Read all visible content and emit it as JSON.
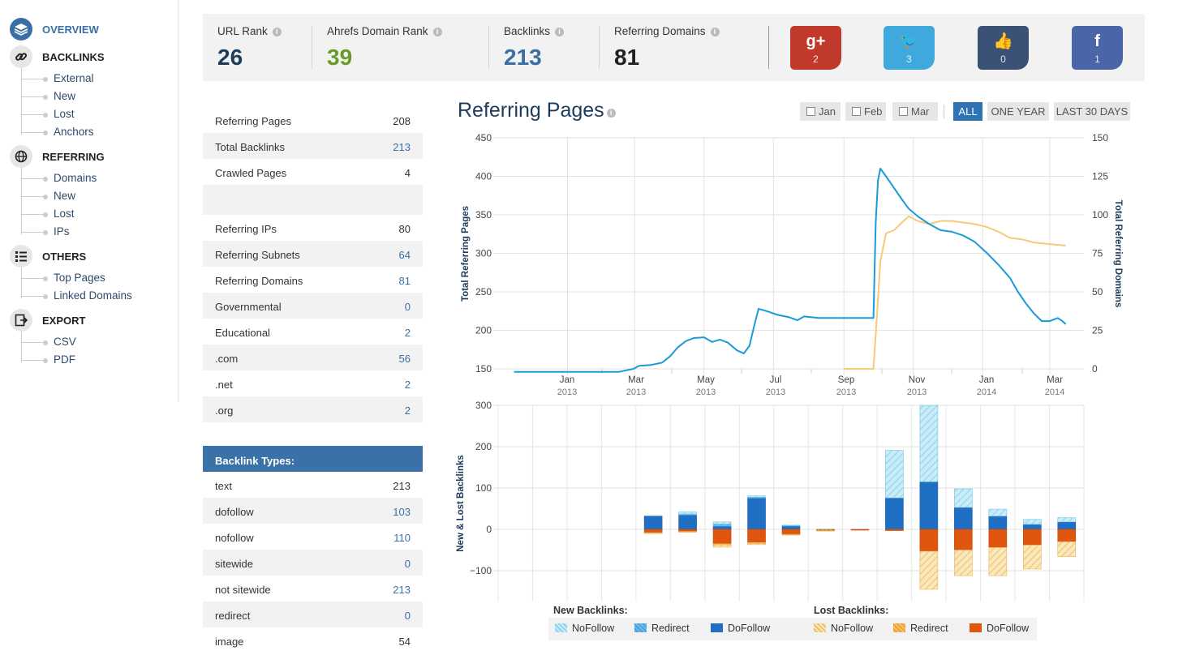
{
  "sidebar": {
    "sections": [
      {
        "title": "OVERVIEW",
        "icon": "layers-icon",
        "items": []
      },
      {
        "title": "BACKLINKS",
        "icon": "link-icon",
        "items": [
          "External",
          "New",
          "Lost",
          "Anchors"
        ]
      },
      {
        "title": "REFERRING",
        "icon": "globe-icon",
        "items": [
          "Domains",
          "New",
          "Lost",
          "IPs"
        ]
      },
      {
        "title": "OTHERS",
        "icon": "list-icon",
        "items": [
          "Top Pages",
          "Linked Domains"
        ]
      },
      {
        "title": "EXPORT",
        "icon": "export-icon",
        "items": [
          "CSV",
          "PDF"
        ]
      }
    ]
  },
  "stats": [
    {
      "label": "URL Rank",
      "value": "26",
      "color": "#1d3c5c"
    },
    {
      "label": "Ahrefs Domain Rank",
      "value": "39",
      "color": "#6a9a2a"
    },
    {
      "label": "Backlinks",
      "value": "213",
      "color": "#3a6fa5"
    },
    {
      "label": "Referring Domains",
      "value": "81",
      "color": "#222222"
    }
  ],
  "social": [
    {
      "name": "google-plus",
      "glyph": "g+",
      "count": "2",
      "color": "#c0392b"
    },
    {
      "name": "twitter",
      "glyph": "🐦",
      "count": "3",
      "color": "#3fa9dd"
    },
    {
      "name": "like",
      "glyph": "👍",
      "count": "0",
      "color": "#3b5175"
    },
    {
      "name": "facebook",
      "glyph": "f",
      "count": "1",
      "color": "#4a66a8"
    }
  ],
  "table1": [
    {
      "label": "Referring Pages",
      "value": "208",
      "link": false
    },
    {
      "label": "Total Backlinks",
      "value": "213",
      "link": true
    },
    {
      "label": "Crawled Pages",
      "value": "4",
      "link": false
    },
    {
      "label": "",
      "value": "",
      "link": false,
      "tall": true
    },
    {
      "label": "Referring IPs",
      "value": "80",
      "link": false
    },
    {
      "label": "Referring Subnets",
      "value": "64",
      "link": true
    },
    {
      "label": "Referring Domains",
      "value": "81",
      "link": true
    },
    {
      "label": "Governmental",
      "value": "0",
      "link": true
    },
    {
      "label": "Educational",
      "value": "2",
      "link": true
    },
    {
      "label": ".com",
      "value": "56",
      "link": true
    },
    {
      "label": ".net",
      "value": "2",
      "link": true
    },
    {
      "label": ".org",
      "value": "2",
      "link": true
    }
  ],
  "table2": {
    "header": "Backlink Types:",
    "rows": [
      {
        "label": "text",
        "value": "213",
        "link": false
      },
      {
        "label": "dofollow",
        "value": "103",
        "link": true
      },
      {
        "label": "nofollow",
        "value": "110",
        "link": true
      },
      {
        "label": "sitewide",
        "value": "0",
        "link": true
      },
      {
        "label": "not sitewide",
        "value": "213",
        "link": true
      },
      {
        "label": "redirect",
        "value": "0",
        "link": true
      },
      {
        "label": "image",
        "value": "54",
        "link": false
      }
    ]
  },
  "chart_header": {
    "title": "Referring Pages",
    "months": [
      "Jan",
      "Feb",
      "Mar"
    ],
    "ranges": [
      "ALL",
      "ONE YEAR",
      "LAST 30 DAYS"
    ],
    "active_range": "ALL"
  },
  "legend": {
    "new_title": "New Backlinks:",
    "lost_title": "Lost Backlinks:",
    "new_items": [
      {
        "label": "NoFollow",
        "color": "#8fd4ee"
      },
      {
        "label": "Redirect",
        "color": "#4aa3e0"
      },
      {
        "label": "DoFollow",
        "color": "#1f6fc5"
      }
    ],
    "lost_items": [
      {
        "label": "NoFollow",
        "color": "#f5d48c"
      },
      {
        "label": "Redirect",
        "color": "#f0a030"
      },
      {
        "label": "DoFollow",
        "color": "#e0560e"
      }
    ]
  },
  "chart_data": [
    {
      "type": "line",
      "xlabel": "",
      "ylabel": "Total Referring Pages",
      "y2label": "Total Referring Domains",
      "ylim": [
        150,
        450
      ],
      "y2lim": [
        0,
        150
      ],
      "yticks": [
        150,
        200,
        250,
        300,
        350,
        400,
        450
      ],
      "y2ticks": [
        0,
        25,
        50,
        75,
        100,
        125,
        150
      ],
      "x_ticks": [
        {
          "month": "Jan",
          "year": "2013"
        },
        {
          "month": "Mar",
          "year": "2013"
        },
        {
          "month": "May",
          "year": "2013"
        },
        {
          "month": "Jul",
          "year": "2013"
        },
        {
          "month": "Sep",
          "year": "2013"
        },
        {
          "month": "Nov",
          "year": "2013"
        },
        {
          "month": "Jan",
          "year": "2014"
        },
        {
          "month": "Mar",
          "year": "2014"
        }
      ],
      "grid": true,
      "series": [
        {
          "name": "Total Referring Pages",
          "axis": "left",
          "color": "#1a9bd7",
          "points": [
            [
              "2012-11-15",
              146
            ],
            [
              "2013-02-15",
              146
            ],
            [
              "2013-02-28",
              150
            ],
            [
              "2013-03-05",
              154
            ],
            [
              "2013-03-15",
              155
            ],
            [
              "2013-03-25",
              158
            ],
            [
              "2013-04-01",
              166
            ],
            [
              "2013-04-08",
              178
            ],
            [
              "2013-04-15",
              186
            ],
            [
              "2013-04-22",
              190
            ],
            [
              "2013-05-01",
              191
            ],
            [
              "2013-05-08",
              185
            ],
            [
              "2013-05-15",
              188
            ],
            [
              "2013-05-22",
              184
            ],
            [
              "2013-05-30",
              174
            ],
            [
              "2013-06-05",
              170
            ],
            [
              "2013-06-10",
              180
            ],
            [
              "2013-06-14",
              205
            ],
            [
              "2013-06-18",
              228
            ],
            [
              "2013-06-25",
              225
            ],
            [
              "2013-07-05",
              220
            ],
            [
              "2013-07-15",
              217
            ],
            [
              "2013-07-22",
              213
            ],
            [
              "2013-07-28",
              218
            ],
            [
              "2013-08-10",
              216
            ],
            [
              "2013-09-01",
              216
            ],
            [
              "2013-09-20",
              216
            ],
            [
              "2013-09-27",
              216
            ],
            [
              "2013-09-29",
              340
            ],
            [
              "2013-10-01",
              395
            ],
            [
              "2013-10-03",
              410
            ],
            [
              "2013-10-08",
              400
            ],
            [
              "2013-10-15",
              385
            ],
            [
              "2013-10-22",
              370
            ],
            [
              "2013-10-28",
              358
            ],
            [
              "2013-11-05",
              348
            ],
            [
              "2013-11-15",
              338
            ],
            [
              "2013-11-25",
              330
            ],
            [
              "2013-12-05",
              328
            ],
            [
              "2013-12-15",
              323
            ],
            [
              "2013-12-25",
              315
            ],
            [
              "2014-01-05",
              300
            ],
            [
              "2014-01-15",
              285
            ],
            [
              "2014-01-25",
              268
            ],
            [
              "2014-02-01",
              250
            ],
            [
              "2014-02-08",
              235
            ],
            [
              "2014-02-15",
              222
            ],
            [
              "2014-02-22",
              212
            ],
            [
              "2014-03-01",
              212
            ],
            [
              "2014-03-08",
              216
            ],
            [
              "2014-03-12",
              212
            ],
            [
              "2014-03-15",
              208
            ]
          ]
        },
        {
          "name": "Total Referring Domains",
          "axis": "right",
          "color": "#f7c97a",
          "points": [
            [
              "2013-09-01",
              0
            ],
            [
              "2013-09-27",
              0
            ],
            [
              "2013-10-01",
              45
            ],
            [
              "2013-10-03",
              70
            ],
            [
              "2013-10-08",
              88
            ],
            [
              "2013-10-15",
              90
            ],
            [
              "2013-10-22",
              95
            ],
            [
              "2013-10-28",
              99
            ],
            [
              "2013-11-05",
              96
            ],
            [
              "2013-11-15",
              94
            ],
            [
              "2013-11-25",
              96
            ],
            [
              "2013-12-05",
              96
            ],
            [
              "2013-12-15",
              95
            ],
            [
              "2013-12-25",
              94
            ],
            [
              "2014-01-05",
              92
            ],
            [
              "2014-01-15",
              89
            ],
            [
              "2014-01-25",
              85
            ],
            [
              "2014-02-05",
              84
            ],
            [
              "2014-02-15",
              82
            ],
            [
              "2014-03-01",
              81
            ],
            [
              "2014-03-15",
              80
            ]
          ]
        }
      ]
    },
    {
      "type": "bar",
      "stacked": true,
      "ylabel": "New & Lost Backlinks",
      "ylim": [
        -150,
        300
      ],
      "yticks": [
        -100,
        0,
        100,
        200,
        300
      ],
      "categories": [
        "2012-11",
        "2012-12",
        "2013-01",
        "2013-02",
        "2013-03",
        "2013-04",
        "2013-05",
        "2013-06",
        "2013-07",
        "2013-08",
        "2013-09",
        "2013-10",
        "2013-11",
        "2013-12",
        "2014-01",
        "2014-02",
        "2014-03"
      ],
      "series": [
        {
          "name": "New NoFollow",
          "color": "#8fd4ee",
          "values": [
            0,
            0,
            0,
            0,
            0,
            5,
            5,
            3,
            0,
            0,
            0,
            115,
            185,
            45,
            17,
            12,
            10
          ]
        },
        {
          "name": "New Redirect",
          "color": "#4aa3e0",
          "values": [
            0,
            0,
            0,
            0,
            0,
            2,
            5,
            2,
            2,
            0,
            0,
            0,
            0,
            0,
            0,
            0,
            0
          ]
        },
        {
          "name": "New DoFollow",
          "color": "#1f6fc5",
          "values": [
            0,
            0,
            0,
            0,
            32,
            35,
            8,
            76,
            8,
            0,
            0,
            76,
            115,
            53,
            32,
            12,
            18
          ]
        },
        {
          "name": "Lost DoFollow",
          "color": "#e0560e",
          "values": [
            0,
            0,
            0,
            0,
            -8,
            -5,
            -35,
            -32,
            -12,
            -3,
            -2,
            -3,
            -53,
            -50,
            -44,
            -38,
            -30
          ]
        },
        {
          "name": "Lost Redirect",
          "color": "#f0a030",
          "values": [
            0,
            0,
            0,
            0,
            -2,
            -2,
            -3,
            -2,
            -2,
            -1,
            0,
            0,
            0,
            0,
            0,
            0,
            0
          ]
        },
        {
          "name": "Lost NoFollow",
          "color": "#f5d48c",
          "values": [
            0,
            0,
            0,
            0,
            0,
            0,
            -5,
            -3,
            0,
            0,
            0,
            0,
            -92,
            -62,
            -68,
            -58,
            -36
          ]
        }
      ]
    }
  ]
}
